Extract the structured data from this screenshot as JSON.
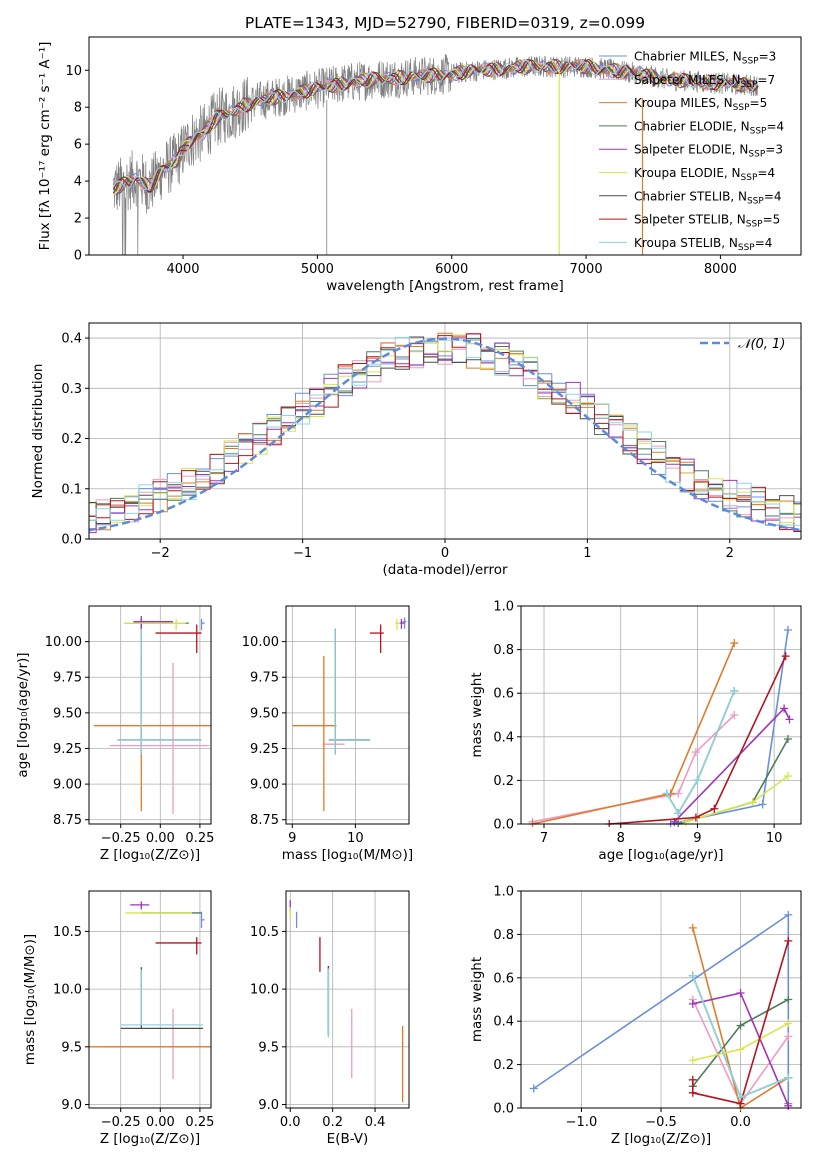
{
  "chart_data": [
    {
      "id": "spectrum",
      "type": "line",
      "title": "PLATE=1343, MJD=52790, FIBERID=0319, z=0.099",
      "xlabel": "wavelength [Angstrom, rest frame]",
      "ylabel": "Flux [fλ 10⁻¹⁷ erg cm⁻² s⁻¹ A⁻¹]",
      "xlim": [
        3300,
        8600
      ],
      "ylim": [
        0,
        11.8
      ],
      "xticks": [
        4000,
        5000,
        6000,
        7000,
        8000
      ],
      "yticks": [
        0,
        2,
        4,
        6,
        8,
        10
      ],
      "grid": false,
      "legend_position": "right",
      "legend": [
        {
          "label": "Chabrier MILES, N",
          "sub": "SSP",
          "suffix": "=3",
          "color": "#6a8fdc"
        },
        {
          "label": "Salpeter MILES, N",
          "sub": "SSP",
          "suffix": "=7",
          "color": "#f09ac4"
        },
        {
          "label": "Kroupa MILES, N",
          "sub": "SSP",
          "suffix": "=5",
          "color": "#e07c27"
        },
        {
          "label": "Chabrier ELODIE, N",
          "sub": "SSP",
          "suffix": "=4",
          "color": "#4e7d5b"
        },
        {
          "label": "Salpeter ELODIE, N",
          "sub": "SSP",
          "suffix": "=3",
          "color": "#9e35b8"
        },
        {
          "label": "Kroupa ELODIE, N",
          "sub": "SSP",
          "suffix": "=4",
          "color": "#d8e64e"
        },
        {
          "label": "Chabrier STELIB, N",
          "sub": "SSP",
          "suffix": "=4",
          "color": "#4d4d4d"
        },
        {
          "label": "Salpeter STELIB, N",
          "sub": "SSP",
          "suffix": "=5",
          "color": "#b3141e"
        },
        {
          "label": "Kroupa STELIB, N",
          "sub": "SSP",
          "suffix": "=4",
          "color": "#8fd6dc"
        }
      ],
      "data_color": "#808080",
      "continuum_x": [
        3450,
        3550,
        3650,
        3750,
        3850,
        3950,
        4050,
        4150,
        4250,
        4350,
        4450,
        4600,
        4800,
        5000,
        5200,
        5400,
        5600,
        5800,
        6000,
        6200,
        6400,
        6600,
        6800,
        7000,
        7200,
        7400,
        7600,
        7800,
        8000,
        8200,
        8300
      ],
      "continuum_y": [
        3.5,
        3.8,
        4.2,
        3.7,
        4.6,
        5.1,
        6.2,
        6.6,
        7.4,
        7.7,
        8.1,
        8.4,
        8.7,
        9.0,
        9.3,
        9.5,
        9.6,
        9.7,
        9.8,
        10.0,
        10.1,
        10.2,
        10.2,
        10.2,
        10.0,
        9.8,
        9.5,
        9.4,
        9.3,
        9.2,
        9.2
      ],
      "line_annotation": {
        "orange_x": 7420,
        "yellow_x": 6800,
        "gray_x": 5070
      }
    },
    {
      "id": "residuals",
      "type": "area",
      "xlabel": "(data-model)/error",
      "ylabel": "Normed distribution",
      "xlim": [
        -2.5,
        2.5
      ],
      "ylim": [
        0,
        0.43
      ],
      "xticks": [
        -2,
        -1,
        0,
        1,
        2
      ],
      "yticks": [
        0.0,
        0.1,
        0.2,
        0.3,
        0.4
      ],
      "grid": true,
      "legend_position": "top-right",
      "gaussian_label": "𝒩(0, 1)",
      "gaussian_color": "#5b8bd9",
      "bin_width": 0.1
    },
    {
      "id": "age-vs-Z",
      "type": "scatter",
      "xlabel": "Z [log₁₀(Z/Z⊙)]",
      "ylabel": "age  [log₁₀(age/yr)]",
      "xlim": [
        -0.45,
        0.32
      ],
      "ylim": [
        8.72,
        10.25
      ],
      "xticks": [
        -0.25,
        0.0,
        0.25
      ],
      "yticks": [
        8.75,
        9.0,
        9.25,
        9.5,
        9.75,
        10.0
      ],
      "grid": true,
      "points": [
        {
          "color": "#6a8fdc",
          "x": 0.26,
          "y": 10.13,
          "xerr": [
            0.0,
            0.02
          ],
          "yerr": [
            0.05,
            0.03
          ]
        },
        {
          "color": "#f09ac4",
          "x": 0.08,
          "y": 9.27,
          "xerr": [
            0.4,
            0.23
          ],
          "yerr": [
            0.48,
            0.58
          ]
        },
        {
          "color": "#e07c27",
          "x": -0.12,
          "y": 9.41,
          "xerr": [
            0.3,
            0.45
          ],
          "yerr": [
            0.6,
            0.49
          ]
        },
        {
          "color": "#4e7d5b",
          "x": -0.12,
          "y": 10.13,
          "xerr": [
            0.1,
            0.3
          ],
          "yerr": [
            0.1,
            0.05
          ]
        },
        {
          "color": "#9e35b8",
          "x": -0.12,
          "y": 10.14,
          "xerr": [
            0.05,
            0.2
          ],
          "yerr": [
            0.05,
            0.03
          ]
        },
        {
          "color": "#d8e64e",
          "x": 0.1,
          "y": 10.13,
          "xerr": [
            0.33,
            0.06
          ],
          "yerr": [
            0.05,
            0.03
          ]
        },
        {
          "color": "#4d4d4d",
          "x": -0.12,
          "y": 9.31,
          "xerr": [
            0.15,
            0.38
          ],
          "yerr": [
            0.1,
            0.78
          ]
        },
        {
          "color": "#b3141e",
          "x": 0.23,
          "y": 10.06,
          "xerr": [
            0.26,
            0.03
          ],
          "yerr": [
            0.14,
            0.06
          ]
        },
        {
          "color": "#8fd6dc",
          "x": -0.12,
          "y": 9.31,
          "xerr": [
            0.15,
            0.38
          ],
          "yerr": [
            0.1,
            0.78
          ]
        }
      ]
    },
    {
      "id": "age-vs-mass",
      "type": "scatter",
      "xlabel": "mass [log₁₀(M/M⊙)]",
      "xlim": [
        8.9,
        10.85
      ],
      "ylim": [
        8.72,
        10.25
      ],
      "xticks": [
        9,
        10
      ],
      "yticks": [
        8.75,
        9.0,
        9.25,
        9.5,
        9.75,
        10.0
      ],
      "grid": true,
      "points": [
        {
          "color": "#6a8fdc",
          "x": 10.78,
          "y": 10.14,
          "xerr": [
            0.03,
            0.03
          ],
          "yerr": [
            0.05,
            0.03
          ]
        },
        {
          "color": "#f09ac4",
          "x": 9.68,
          "y": 9.28,
          "xerr": [
            0.2,
            0.15
          ],
          "yerr": [
            0.0,
            0.0
          ]
        },
        {
          "color": "#e07c27",
          "x": 9.5,
          "y": 9.41,
          "xerr": [
            0.5,
            0.2
          ],
          "yerr": [
            0.6,
            0.49
          ]
        },
        {
          "color": "#4e7d5b",
          "x": 9.68,
          "y": 9.31,
          "xerr": [
            0.1,
            0.55
          ],
          "yerr": [
            0.1,
            0.78
          ]
        },
        {
          "color": "#9e35b8",
          "x": 10.73,
          "y": 10.13,
          "xerr": [
            0.03,
            0.05
          ],
          "yerr": [
            0.04,
            0.03
          ]
        },
        {
          "color": "#d8e64e",
          "x": 10.66,
          "y": 10.13,
          "xerr": [
            0.03,
            0.03
          ],
          "yerr": [
            0.05,
            0.03
          ]
        },
        {
          "color": "#4d4d4d",
          "x": 9.68,
          "y": 9.31,
          "xerr": [
            0.1,
            0.55
          ],
          "yerr": [
            0.1,
            0.78
          ]
        },
        {
          "color": "#b3141e",
          "x": 10.4,
          "y": 10.06,
          "xerr": [
            0.17,
            0.05
          ],
          "yerr": [
            0.14,
            0.06
          ]
        },
        {
          "color": "#8fd6dc",
          "x": 9.68,
          "y": 9.31,
          "xerr": [
            0.1,
            0.55
          ],
          "yerr": [
            0.1,
            0.78
          ]
        }
      ]
    },
    {
      "id": "weight-vs-age",
      "type": "line",
      "xlabel": "age  [log₁₀(age/yr)]",
      "ylabel": "mass weight",
      "xlim": [
        6.7,
        10.35
      ],
      "ylim": [
        0,
        1.0
      ],
      "xticks": [
        7,
        8,
        9,
        10
      ],
      "yticks": [
        0.0,
        0.2,
        0.4,
        0.6,
        0.8,
        1.0
      ],
      "grid": true,
      "series": [
        {
          "color": "#6a8fdc",
          "x": [
            8.65,
            9.85,
            10.18
          ],
          "y": [
            0.0,
            0.09,
            0.89
          ]
        },
        {
          "color": "#f09ac4",
          "x": [
            6.85,
            8.75,
            8.98,
            9.48
          ],
          "y": [
            0.01,
            0.14,
            0.33,
            0.5
          ]
        },
        {
          "color": "#e07c27",
          "x": [
            6.85,
            8.65,
            9.48
          ],
          "y": [
            0.0,
            0.14,
            0.83
          ]
        },
        {
          "color": "#4e7d5b",
          "x": [
            8.75,
            9.72,
            10.18
          ],
          "y": [
            0.0,
            0.1,
            0.39
          ]
        },
        {
          "color": "#9e35b8",
          "x": [
            8.7,
            10.13,
            10.2
          ],
          "y": [
            0.01,
            0.53,
            0.48
          ]
        },
        {
          "color": "#d8e64e",
          "x": [
            8.85,
            9.72,
            10.18
          ],
          "y": [
            0.01,
            0.1,
            0.22
          ]
        },
        {
          "color": "#4d4d4d",
          "x": [
            8.6,
            8.75,
            9.0,
            9.48
          ],
          "y": [
            0.14,
            0.05,
            0.2,
            0.61
          ]
        },
        {
          "color": "#b3141e",
          "x": [
            7.85,
            8.98,
            9.22,
            10.15
          ],
          "y": [
            0.0,
            0.03,
            0.07,
            0.77
          ]
        },
        {
          "color": "#8fd6dc",
          "x": [
            8.6,
            8.75,
            9.0,
            9.48
          ],
          "y": [
            0.14,
            0.05,
            0.2,
            0.61
          ]
        }
      ]
    },
    {
      "id": "mass-vs-Z",
      "type": "scatter",
      "xlabel": "Z [log₁₀(Z/Z⊙)]",
      "ylabel": "mass [log₁₀(M/M⊙)]",
      "xlim": [
        -0.45,
        0.32
      ],
      "ylim": [
        8.97,
        10.85
      ],
      "xticks": [
        -0.25,
        0.0,
        0.25
      ],
      "yticks": [
        9.0,
        9.5,
        10.0,
        10.5
      ],
      "grid": true,
      "points": [
        {
          "color": "#6a8fdc",
          "x": 0.26,
          "y": 10.6,
          "xerr": [
            0.0,
            0.02
          ],
          "yerr": [
            0.07,
            0.07
          ]
        },
        {
          "color": "#f09ac4",
          "x": 0.08,
          "y": 9.5,
          "xerr": [
            0.4,
            0.23
          ],
          "yerr": [
            0.28,
            0.33
          ]
        },
        {
          "color": "#e07c27",
          "x": -0.12,
          "y": 9.5,
          "xerr": [
            0.35,
            0.45
          ],
          "yerr": [
            0.0,
            0.0
          ]
        },
        {
          "color": "#4e7d5b",
          "x": -0.12,
          "y": 10.66,
          "xerr": [
            0.0,
            0.38
          ],
          "yerr": [
            0.0,
            0.0
          ]
        },
        {
          "color": "#9e35b8",
          "x": -0.12,
          "y": 10.73,
          "xerr": [
            0.07,
            0.05
          ],
          "yerr": [
            0.04,
            0.03
          ]
        },
        {
          "color": "#d8e64e",
          "x": 0.1,
          "y": 10.66,
          "xerr": [
            0.32,
            0.1
          ],
          "yerr": [
            0.0,
            0.0
          ]
        },
        {
          "color": "#4d4d4d",
          "x": -0.12,
          "y": 9.66,
          "xerr": [
            0.13,
            0.39
          ],
          "yerr": [
            0.0,
            0.53
          ]
        },
        {
          "color": "#b3141e",
          "x": 0.23,
          "y": 10.4,
          "xerr": [
            0.26,
            0.03
          ],
          "yerr": [
            0.1,
            0.05
          ]
        },
        {
          "color": "#8fd6dc",
          "x": -0.12,
          "y": 9.69,
          "xerr": [
            0.13,
            0.39
          ],
          "yerr": [
            0.0,
            0.48
          ]
        }
      ]
    },
    {
      "id": "mass-vs-EBV",
      "type": "scatter",
      "xlabel": "E(B-V)",
      "xlim": [
        -0.02,
        0.56
      ],
      "ylim": [
        8.97,
        10.85
      ],
      "xticks": [
        0.0,
        0.2,
        0.4
      ],
      "yticks": [
        9.0,
        9.5,
        10.0,
        10.5
      ],
      "grid": true,
      "points": [
        {
          "color": "#6a8fdc",
          "x": 0.03,
          "y": 10.6,
          "xerr": [
            0,
            0
          ],
          "yerr": [
            0.07,
            0.07
          ]
        },
        {
          "color": "#f09ac4",
          "x": 0.29,
          "y": 9.53,
          "xerr": [
            0,
            0
          ],
          "yerr": [
            0.3,
            0.3
          ]
        },
        {
          "color": "#e07c27",
          "x": 0.53,
          "y": 9.35,
          "xerr": [
            0,
            0
          ],
          "yerr": [
            0.33,
            0.33
          ]
        },
        {
          "color": "#4e7d5b",
          "x": 0.18,
          "y": 9.9,
          "xerr": [
            0,
            0
          ],
          "yerr": [
            0.3,
            0.3
          ]
        },
        {
          "color": "#9e35b8",
          "x": 0.0,
          "y": 10.72,
          "xerr": [
            0,
            0
          ],
          "yerr": [
            0.05,
            0.05
          ]
        },
        {
          "color": "#d8e64e",
          "x": 0.0,
          "y": 10.66,
          "xerr": [
            0,
            0
          ],
          "yerr": [
            0.05,
            0.05
          ]
        },
        {
          "color": "#4d4d4d",
          "x": 0.18,
          "y": 9.9,
          "xerr": [
            0,
            0
          ],
          "yerr": [
            0.3,
            0.3
          ]
        },
        {
          "color": "#b3141e",
          "x": 0.14,
          "y": 10.3,
          "xerr": [
            0,
            0
          ],
          "yerr": [
            0.15,
            0.15
          ]
        },
        {
          "color": "#8fd6dc",
          "x": 0.18,
          "y": 9.88,
          "xerr": [
            0,
            0
          ],
          "yerr": [
            0.3,
            0.3
          ]
        }
      ]
    },
    {
      "id": "weight-vs-Z",
      "type": "line",
      "xlabel": "Z [log₁₀(Z/Z⊙)]",
      "ylabel": "mass weight",
      "xlim": [
        -1.38,
        0.38
      ],
      "ylim": [
        0,
        1.0
      ],
      "xticks": [
        -1.0,
        -0.5,
        0.0
      ],
      "yticks": [
        0.0,
        0.2,
        0.4,
        0.6,
        0.8,
        1.0
      ],
      "grid": true,
      "series": [
        {
          "color": "#6a8fdc",
          "x": [
            -1.3,
            0.3,
            0.3
          ],
          "y": [
            0.09,
            0.89,
            0.02
          ]
        },
        {
          "color": "#f09ac4",
          "x": [
            -0.3,
            0.0,
            0.3
          ],
          "y": [
            0.5,
            0.02,
            0.33
          ]
        },
        {
          "color": "#e07c27",
          "x": [
            -0.3,
            0.0,
            0.3
          ],
          "y": [
            0.83,
            0.0,
            0.14
          ]
        },
        {
          "color": "#4e7d5b",
          "x": [
            -0.3,
            0.0,
            0.3
          ],
          "y": [
            0.1,
            0.38,
            0.5
          ]
        },
        {
          "color": "#9e35b8",
          "x": [
            -0.3,
            0.0,
            0.3
          ],
          "y": [
            0.48,
            0.53,
            0.01
          ]
        },
        {
          "color": "#d8e64e",
          "x": [
            -0.3,
            0.0,
            0.3
          ],
          "y": [
            0.22,
            0.27,
            0.39
          ]
        },
        {
          "color": "#4d4d4d",
          "x": [
            -0.3,
            0.0,
            0.3
          ],
          "y": [
            0.61,
            0.05,
            0.14
          ]
        },
        {
          "color": "#b3141e",
          "x": [
            -0.3,
            -0.3,
            0.0,
            0.3
          ],
          "y": [
            0.13,
            0.07,
            0.02,
            0.77
          ]
        },
        {
          "color": "#8fd6dc",
          "x": [
            -0.3,
            0.0,
            0.3
          ],
          "y": [
            0.61,
            0.05,
            0.14
          ]
        }
      ]
    }
  ]
}
